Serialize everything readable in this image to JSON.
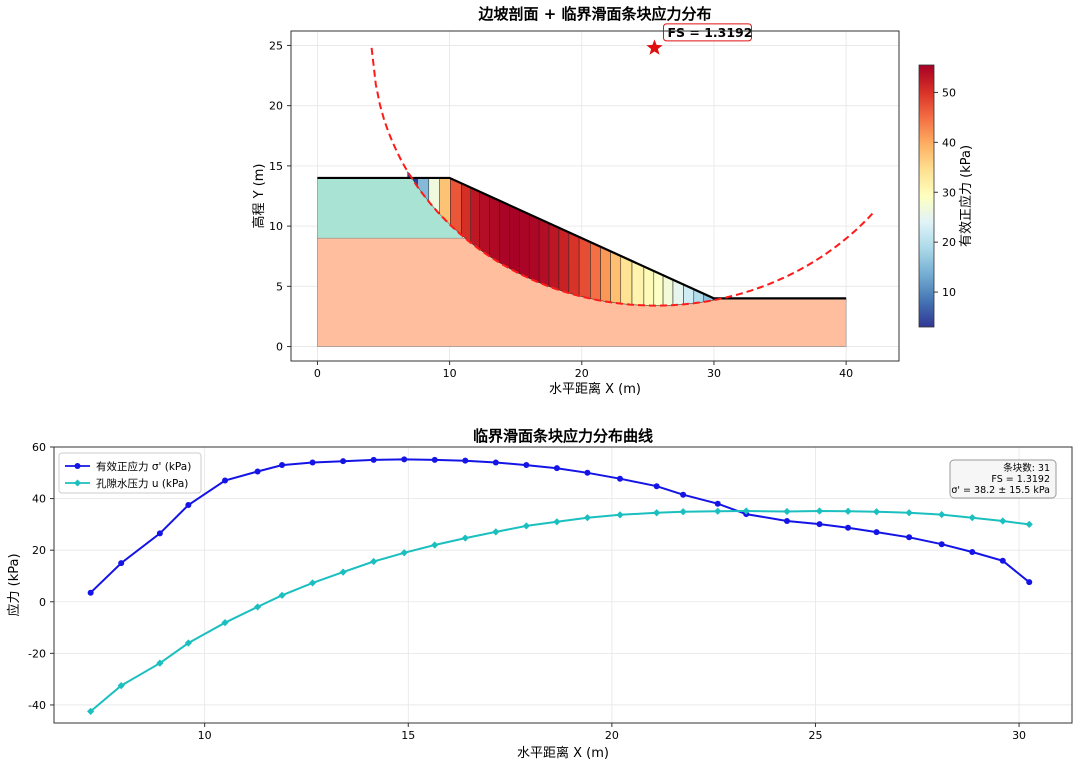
{
  "colors": {
    "soil_upper": "#a8e3d3",
    "soil_lower": "#ffbf9e",
    "slip_circle": "#ff1a1a",
    "sigma_line": "#1414e6",
    "pore_line": "#1bbfbf",
    "fs_text": "#e01010",
    "colormap": "RdYlBu_r",
    "grid": "#e6e6e6"
  },
  "chart_data": [
    {
      "type": "area",
      "title": "边坡剖面 + 临界滑面条块应力分布",
      "xlabel": "水平距离 X (m)",
      "ylabel": "高程 Y (m)",
      "xlim": [
        -2,
        44
      ],
      "ylim": [
        -1.2,
        26.2
      ],
      "xticks": [
        0,
        10,
        20,
        30,
        40
      ],
      "yticks": [
        0,
        5,
        10,
        15,
        20,
        25
      ],
      "grid": true,
      "ground_surface": {
        "x": [
          0,
          10,
          30,
          40
        ],
        "y": [
          14,
          14,
          4,
          4
        ]
      },
      "layer_boundary": {
        "x": [
          0,
          11,
          40
        ],
        "y": [
          9,
          9,
          9
        ]
      },
      "bottom": 0,
      "slip_circle": {
        "center": [
          25.6,
          24.8
        ],
        "radius": 21.4,
        "x_start": 4.1,
        "x_end": 42
      },
      "fs_annotation": {
        "label": "FS = 1.3192",
        "marker": [
          25.5,
          24.8
        ]
      },
      "slices": {
        "x": [
          7.2,
          7.95,
          8.9,
          9.6,
          10.5,
          11.3,
          11.9,
          12.65,
          13.4,
          14.15,
          14.9,
          15.65,
          16.4,
          17.15,
          17.9,
          18.65,
          19.4,
          20.2,
          21.1,
          21.75,
          22.6,
          23.3,
          24.3,
          25.1,
          25.8,
          26.5,
          27.3,
          28.1,
          28.85,
          29.6,
          30.25
        ],
        "sigma": [
          3.5,
          15,
          26.5,
          37.5,
          47,
          50.5,
          53,
          54,
          54.5,
          55,
          55.2,
          55,
          54.7,
          54,
          53,
          51.8,
          50,
          47.7,
          44.8,
          41.5,
          38,
          34,
          31.3,
          30.1,
          28.7,
          27,
          25,
          22.3,
          19.3,
          15.9,
          7.6
        ]
      },
      "colorbar": {
        "label": "有效正应力 (kPa)",
        "range": [
          3,
          55.5
        ],
        "ticks": [
          10,
          20,
          30,
          40,
          50
        ]
      }
    },
    {
      "type": "line",
      "title": "临界滑面条块应力分布曲线",
      "xlabel": "水平距离 X (m)",
      "ylabel": "应力 (kPa)",
      "xlim": [
        6.3,
        31.3
      ],
      "ylim": [
        -47,
        60
      ],
      "xticks": [
        10,
        15,
        20,
        25,
        30
      ],
      "yticks": [
        -40,
        -20,
        0,
        20,
        40,
        60
      ],
      "grid": true,
      "legend_position": "top-left",
      "x": [
        7.2,
        7.95,
        8.9,
        9.6,
        10.5,
        11.3,
        11.9,
        12.65,
        13.4,
        14.15,
        14.9,
        15.65,
        16.4,
        17.15,
        17.9,
        18.65,
        19.4,
        20.2,
        21.1,
        21.75,
        22.6,
        23.3,
        24.3,
        25.1,
        25.8,
        26.5,
        27.3,
        28.1,
        28.85,
        29.6,
        30.25
      ],
      "series": [
        {
          "name": "有效正应力 σ' (kPa)",
          "marker": "circle",
          "values": [
            3.5,
            15,
            26.5,
            37.5,
            47,
            50.5,
            53,
            54,
            54.5,
            55,
            55.2,
            55,
            54.7,
            54,
            53,
            51.8,
            50,
            47.7,
            44.8,
            41.5,
            38,
            34,
            31.3,
            30.1,
            28.7,
            27,
            25,
            22.3,
            19.3,
            15.9,
            7.6
          ]
        },
        {
          "name": "孔隙水压力 u (kPa)",
          "marker": "diamond",
          "values": [
            -42.5,
            -32.5,
            -23.8,
            -16,
            -8.1,
            -2,
            2.5,
            7.3,
            11.5,
            15.6,
            19,
            22,
            24.7,
            27.1,
            29.4,
            31,
            32.6,
            33.7,
            34.5,
            34.9,
            35.1,
            35.2,
            35,
            35.2,
            35.1,
            34.9,
            34.5,
            33.8,
            32.6,
            31.3,
            30
          ]
        }
      ],
      "info_box": [
        "条块数: 31",
        "FS = 1.3192",
        "σ' = 38.2 ± 15.5 kPa"
      ]
    }
  ]
}
